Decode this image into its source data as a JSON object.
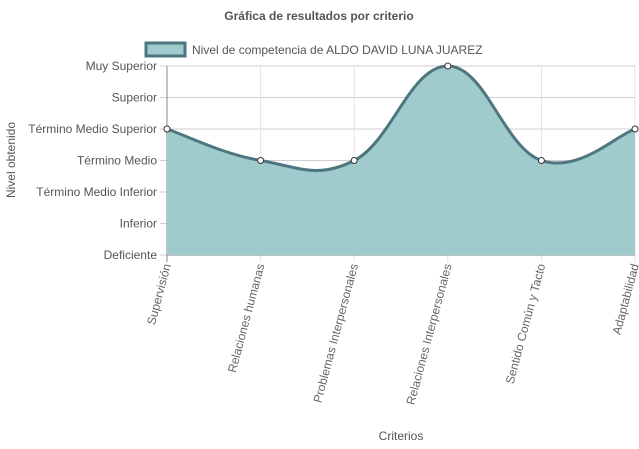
{
  "chart_data": {
    "type": "area",
    "title": "Gráfica de resultados por criterio",
    "xlabel": "Criterios",
    "ylabel": "Nivel obtenido",
    "categories": [
      "Supervisión",
      "Relaciones humanas",
      "Problemas Interpersonales",
      "Relaciones Interpersonales",
      "Sentido Común y Tacto",
      "Adaptabilidad"
    ],
    "y_levels": [
      "Deficiente",
      "Inferior",
      "Término Medio Inferior",
      "Término Medio",
      "Término Medio Superior",
      "Superior",
      "Muy Superior"
    ],
    "ylim": [
      0,
      6
    ],
    "series": [
      {
        "name": "Nivel de competencia de ALDO DAVID LUNA JUAREZ",
        "values": [
          4,
          3,
          3,
          6,
          3,
          4
        ]
      }
    ],
    "colors": {
      "fill": "#9fcbcd",
      "line": "#4e7680",
      "point_fill": "#ffffff",
      "grid": "#cfcfcf",
      "text": "#555555"
    },
    "grid": true,
    "legend_position": "top"
  }
}
